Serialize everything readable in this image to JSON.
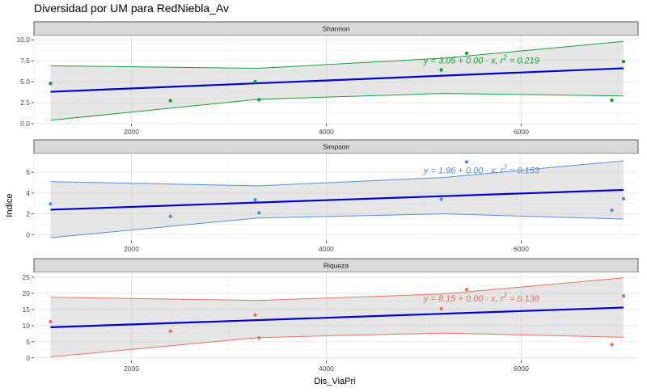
{
  "chart_data": {
    "type": "scatter",
    "title": "Diversidad por UM para RedNiebla_Av",
    "xlabel": "Dis_ViaPri",
    "ylabel": "Indice",
    "xlim": [
      1000,
      7200
    ],
    "x_ticks": [
      {
        "value": 2000,
        "label": "2000"
      },
      {
        "value": 4000,
        "label": "4000"
      },
      {
        "value": 6000,
        "label": "6000"
      }
    ],
    "trend_color": "#0000CD",
    "panels": [
      {
        "name": "Shannon",
        "color": "#1A9E3A",
        "ylim": [
          0,
          10.5
        ],
        "y_ticks": [
          {
            "value": 0,
            "label": "0.0"
          },
          {
            "value": 2.5,
            "label": "2.5"
          },
          {
            "value": 5,
            "label": "5.0"
          },
          {
            "value": 7.5,
            "label": "7.5"
          },
          {
            "value": 10,
            "label": "10.0"
          }
        ],
        "points": [
          {
            "x": 1170,
            "y": 4.8
          },
          {
            "x": 2400,
            "y": 2.75
          },
          {
            "x": 3270,
            "y": 5.0
          },
          {
            "x": 3310,
            "y": 2.85
          },
          {
            "x": 5180,
            "y": 6.4
          },
          {
            "x": 5440,
            "y": 8.4
          },
          {
            "x": 6930,
            "y": 2.8
          },
          {
            "x": 7050,
            "y": 7.4
          }
        ],
        "fit": {
          "x": [
            1170,
            7050
          ],
          "y": [
            3.8,
            6.6
          ]
        },
        "band_upper": {
          "x": [
            1170,
            3300,
            5200,
            7050
          ],
          "y": [
            6.9,
            6.6,
            7.8,
            9.8
          ]
        },
        "band_lower": {
          "x": [
            1170,
            3300,
            5200,
            7050
          ],
          "y": [
            0.4,
            2.9,
            3.6,
            3.3
          ]
        },
        "equation": {
          "prefix": "y = 3.05 + 0.00 · x,  r",
          "sup": "2",
          "suffix": " = 0.219",
          "x": 5000,
          "y": 7.2
        }
      },
      {
        "name": "Simpson",
        "color": "#5B8FDB",
        "ylim": [
          -0.6,
          7.8
        ],
        "y_ticks": [
          {
            "value": 0,
            "label": "0"
          },
          {
            "value": 2,
            "label": "2"
          },
          {
            "value": 4,
            "label": "4"
          },
          {
            "value": 6,
            "label": "6"
          }
        ],
        "points": [
          {
            "x": 1170,
            "y": 2.95
          },
          {
            "x": 2400,
            "y": 1.75
          },
          {
            "x": 3270,
            "y": 3.35
          },
          {
            "x": 3310,
            "y": 2.1
          },
          {
            "x": 5180,
            "y": 3.4
          },
          {
            "x": 5440,
            "y": 7.0
          },
          {
            "x": 6930,
            "y": 2.35
          },
          {
            "x": 7050,
            "y": 3.45
          }
        ],
        "fit": {
          "x": [
            1170,
            7050
          ],
          "y": [
            2.4,
            4.3
          ]
        },
        "band_upper": {
          "x": [
            1170,
            3300,
            5200,
            7050
          ],
          "y": [
            5.1,
            4.7,
            5.5,
            7.1
          ]
        },
        "band_lower": {
          "x": [
            1170,
            3300,
            5200,
            7050
          ],
          "y": [
            -0.3,
            1.6,
            2.0,
            1.5
          ]
        },
        "equation": {
          "prefix": "y = 1.96 + 0.00 · x,  r",
          "sup": "2",
          "suffix": " = 0.153",
          "x": 5000,
          "y": 5.9
        }
      },
      {
        "name": "Riqueza",
        "color": "#E87362",
        "ylim": [
          -0.8,
          26.5
        ],
        "y_ticks": [
          {
            "value": 0,
            "label": "0"
          },
          {
            "value": 5,
            "label": "5"
          },
          {
            "value": 10,
            "label": "10"
          },
          {
            "value": 15,
            "label": "15"
          },
          {
            "value": 20,
            "label": "20"
          },
          {
            "value": 25,
            "label": "25"
          }
        ],
        "points": [
          {
            "x": 1170,
            "y": 11.2
          },
          {
            "x": 2400,
            "y": 8.3
          },
          {
            "x": 3270,
            "y": 13.3
          },
          {
            "x": 3310,
            "y": 6.2
          },
          {
            "x": 5180,
            "y": 15.2
          },
          {
            "x": 5440,
            "y": 21.2
          },
          {
            "x": 6930,
            "y": 4.1
          },
          {
            "x": 7050,
            "y": 19.2
          }
        ],
        "fit": {
          "x": [
            1170,
            7050
          ],
          "y": [
            9.5,
            15.6
          ]
        },
        "band_upper": {
          "x": [
            1170,
            3300,
            5200,
            7050
          ],
          "y": [
            18.8,
            17.8,
            19.8,
            24.8
          ]
        },
        "band_lower": {
          "x": [
            1170,
            3300,
            5200,
            7050
          ],
          "y": [
            0.3,
            6.3,
            7.7,
            6.4
          ]
        },
        "equation": {
          "prefix": "y = 8.15 + 0.00 · x,  r",
          "sup": "2",
          "suffix": " = 0.138",
          "x": 5000,
          "y": 17.5
        }
      }
    ],
    "grid": true,
    "legend": "none"
  }
}
